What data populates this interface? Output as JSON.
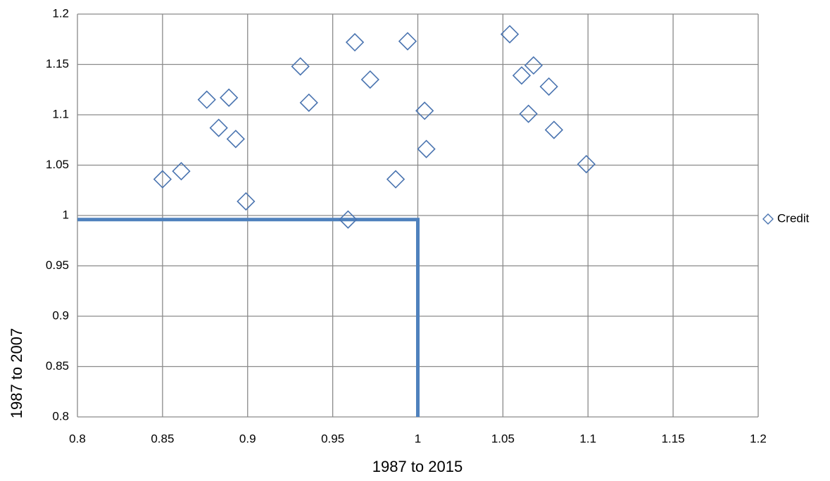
{
  "chart_data": {
    "type": "scatter",
    "x_label": "1987 to 2015",
    "y_label": "1987 to 2007",
    "xlim": [
      0.8,
      1.2
    ],
    "xticks": [
      0.8,
      0.85,
      0.9,
      0.95,
      1,
      1.05,
      1.1,
      1.15,
      1.2
    ],
    "ylim": [
      0.8,
      1.2
    ],
    "yticks": [
      0.8,
      0.85,
      0.9,
      0.95,
      1,
      1.05,
      1.1,
      1.15,
      1.2
    ],
    "grid": true,
    "legend": "right",
    "series": [
      {
        "name": "Credit",
        "color": "#4a74b0",
        "marker": "diamond",
        "x": [
          0.85,
          0.861,
          0.876,
          0.889,
          0.883,
          0.893,
          0.899,
          0.931,
          0.936,
          0.963,
          0.959,
          0.972,
          0.987,
          0.994,
          1.004,
          1.005,
          1.054,
          1.061,
          1.068,
          1.065,
          1.077,
          1.08,
          1.099
        ],
        "values": [
          1.036,
          1.044,
          1.115,
          1.117,
          1.087,
          1.076,
          1.014,
          1.148,
          1.112,
          1.172,
          0.996,
          1.135,
          1.036,
          1.173,
          1.104,
          1.066,
          1.18,
          1.139,
          1.149,
          1.101,
          1.128,
          1.085,
          1.051
        ]
      }
    ],
    "reference_line": {
      "color": "#4f81bd",
      "x": [
        0.8,
        1,
        1
      ],
      "values": [
        0.996,
        0.996,
        0.8
      ]
    }
  }
}
